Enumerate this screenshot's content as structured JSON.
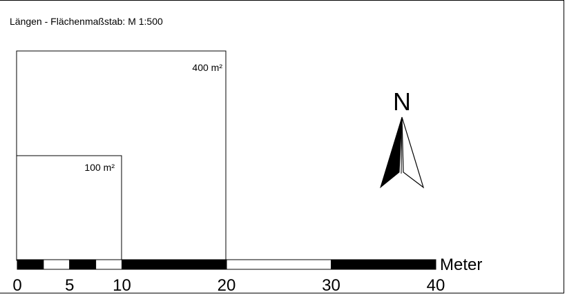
{
  "title": "Längen - Flächenmaßstab: M 1:500",
  "areas": [
    {
      "label": "400 m²",
      "side_m": 20
    },
    {
      "label": "100 m²",
      "side_m": 10
    }
  ],
  "north": {
    "label": "N"
  },
  "scale_bar": {
    "unit_label": "Meter",
    "segments": [
      {
        "from": 0,
        "to": 2.5,
        "fill": "black"
      },
      {
        "from": 2.5,
        "to": 5,
        "fill": "white"
      },
      {
        "from": 5,
        "to": 7.5,
        "fill": "black"
      },
      {
        "from": 7.5,
        "to": 10,
        "fill": "white"
      },
      {
        "from": 10,
        "to": 20,
        "fill": "black"
      },
      {
        "from": 20,
        "to": 30,
        "fill": "white"
      },
      {
        "from": 30,
        "to": 40,
        "fill": "black"
      }
    ],
    "ticks": [
      "0",
      "5",
      "10",
      "20",
      "30",
      "40"
    ]
  }
}
